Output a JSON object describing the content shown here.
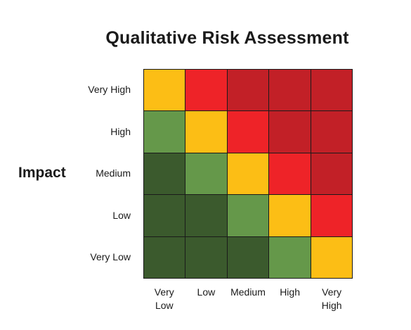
{
  "chart_data": {
    "type": "heatmap",
    "title": "Qualitative Risk Assessment",
    "ylabel": "Impact",
    "xlabel": "",
    "y_categories": [
      "Very High",
      "High",
      "Medium",
      "Low",
      "Very Low"
    ],
    "x_categories": [
      [
        "Very",
        "Low"
      ],
      [
        "Low"
      ],
      [
        "Medium"
      ],
      [
        "High"
      ],
      [
        "Very",
        "High"
      ]
    ],
    "values": [
      [
        3,
        4,
        5,
        5,
        5
      ],
      [
        2,
        3,
        4,
        5,
        5
      ],
      [
        1,
        2,
        3,
        4,
        5
      ],
      [
        1,
        1,
        2,
        3,
        4
      ],
      [
        1,
        1,
        1,
        2,
        3
      ]
    ],
    "colors": {
      "1": "#3b5a2d",
      "2": "#65984a",
      "3": "#fcbe15",
      "4": "#ee2328",
      "5": "#c22027"
    },
    "legend": "none",
    "grid": true
  }
}
